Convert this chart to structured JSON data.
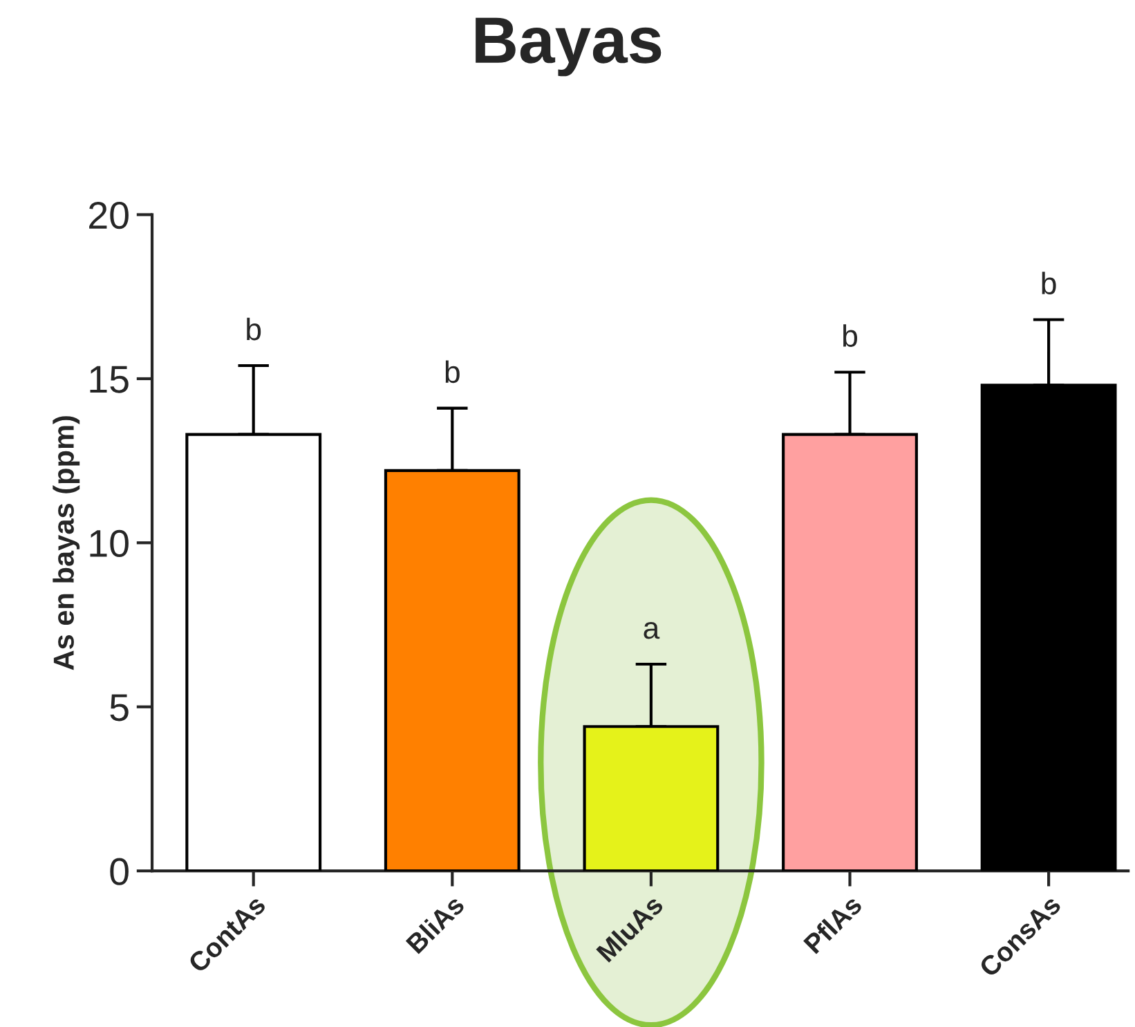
{
  "chart_data": {
    "type": "bar",
    "title": "Bayas",
    "ylabel": "As en bayas (ppm)",
    "categories": [
      "ContAs",
      "BliAs",
      "MluAs",
      "PflAs",
      "ConsAs"
    ],
    "values": [
      13.3,
      12.2,
      4.4,
      13.3,
      14.8
    ],
    "colors": [
      "#ffffff",
      "#ff8000",
      "#e5f21a",
      "#ffa0a0",
      "#000000"
    ],
    "errors": [
      [
        13.3,
        15.4
      ],
      [
        12.2,
        14.1
      ],
      [
        4.4,
        6.3
      ],
      [
        13.3,
        15.2
      ],
      [
        14.8,
        16.8
      ]
    ],
    "ylim": [
      0,
      20
    ],
    "yticks": [
      0,
      5,
      10,
      15,
      20
    ],
    "grid": false,
    "annotations": [
      {
        "text": "b",
        "x": "ContAs",
        "y": 15.4
      },
      {
        "text": "b",
        "x": "BliAs",
        "y": 14.1
      },
      {
        "text": "a",
        "x": "MluAs",
        "y": 6.3
      },
      {
        "text": "b",
        "x": "PflAs",
        "y": 15.2
      },
      {
        "text": "b",
        "x": "ConsAs",
        "y": 16.8
      }
    ]
  }
}
